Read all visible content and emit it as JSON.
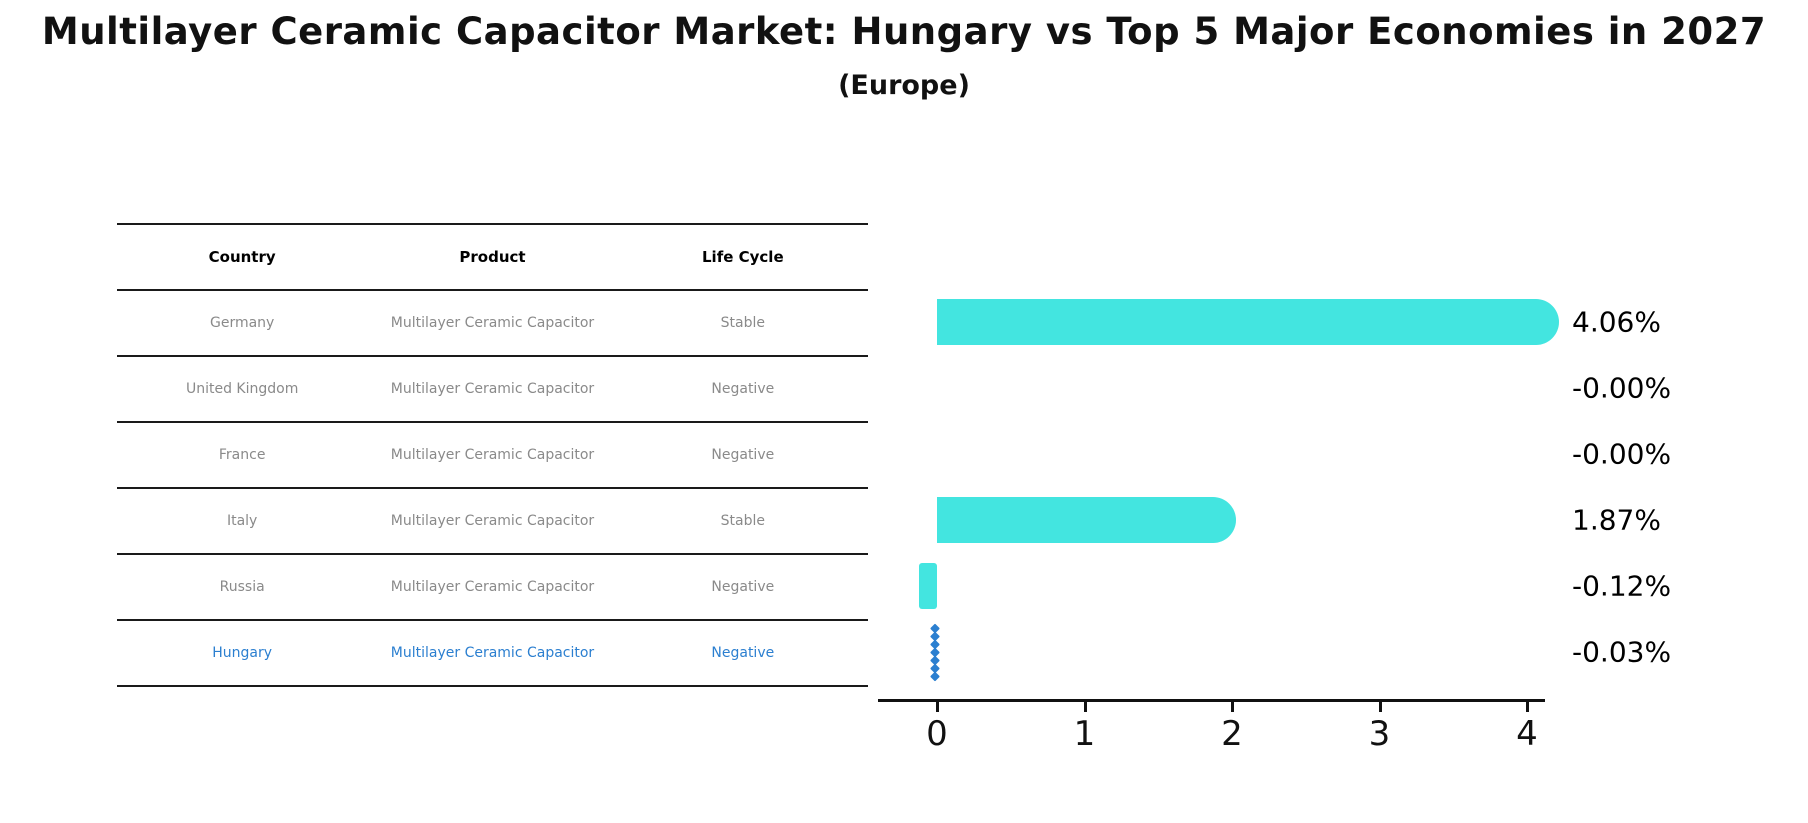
{
  "title": "Multilayer Ceramic Capacitor Market: Hungary vs Top 5 Major Economies in 2027",
  "subtitle": "(Europe)",
  "colors": {
    "bar_cyan": "#43e5e0",
    "highlight_blue": "#2b7fd0",
    "row_text_gray": "#8a8a8a",
    "header_text": "#000000",
    "axis_black": "#111111"
  },
  "table": {
    "headers": [
      "Country",
      "Product",
      "Life Cycle"
    ],
    "rows": [
      {
        "country": "Germany",
        "product": "Multilayer Ceramic Capacitor",
        "life_cycle": "Stable",
        "highlight": false
      },
      {
        "country": "United Kingdom",
        "product": "Multilayer Ceramic Capacitor",
        "life_cycle": "Negative",
        "highlight": false
      },
      {
        "country": "France",
        "product": "Multilayer Ceramic Capacitor",
        "life_cycle": "Negative",
        "highlight": false
      },
      {
        "country": "Italy",
        "product": "Multilayer Ceramic Capacitor",
        "life_cycle": "Stable",
        "highlight": false
      },
      {
        "country": "Russia",
        "product": "Multilayer Ceramic Capacitor",
        "life_cycle": "Negative",
        "highlight": false
      },
      {
        "country": "Hungary",
        "product": "Multilayer Ceramic Capacitor",
        "life_cycle": "Negative",
        "highlight": true
      }
    ]
  },
  "chart_data": {
    "type": "bar",
    "orientation": "horizontal",
    "title": "Multilayer Ceramic Capacitor Market: Hungary vs Top 5 Major Economies in 2027 (Europe)",
    "categories": [
      "Germany",
      "United Kingdom",
      "France",
      "Italy",
      "Russia",
      "Hungary"
    ],
    "values": [
      4.06,
      -0.0,
      -0.0,
      1.87,
      -0.12,
      -0.03
    ],
    "value_labels": [
      "4.06%",
      "-0.00%",
      "-0.00%",
      "1.87%",
      "-0.12%",
      "-0.03%"
    ],
    "x_ticks": [
      0,
      1,
      2,
      3,
      4
    ],
    "xlim": [
      -0.4,
      4.3
    ],
    "xlabel": "",
    "ylabel": "",
    "grid": false,
    "legend": "none",
    "bar_color": "#43e5e0",
    "highlight_series": "Hungary",
    "highlight_marker": "dashed-vertical-line",
    "highlight_color": "#2b7fd0"
  }
}
